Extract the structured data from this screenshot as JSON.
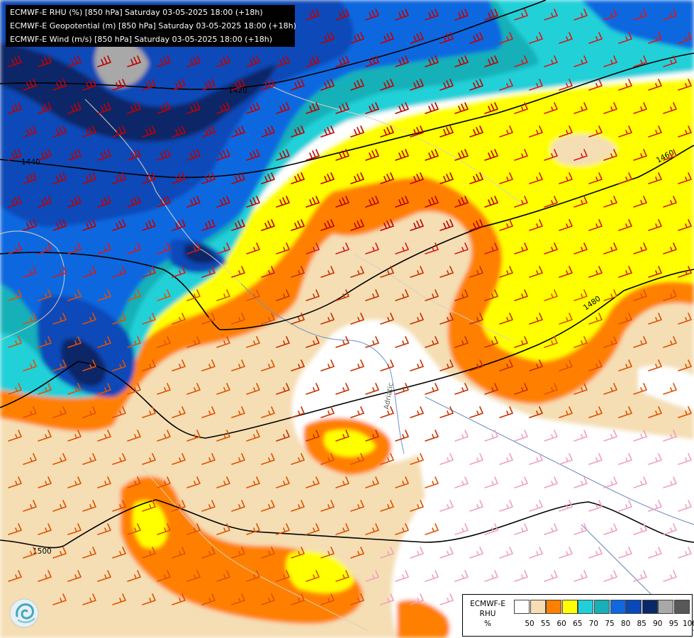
{
  "info_lines": [
    "ECMWF-E RHU (%) [850 hPa] Saturday 03-05-2025 18:00 (+18h)",
    "ECMWF-E Geopotential (m) [850 hPa] Saturday 03-05-2025 18:00 (+18h)",
    "ECMWF-E Wind (m/s) [850 hPa] Saturday 03-05-2025 18:00 (+18h)"
  ],
  "legend": {
    "title_line1": "ECMWF-E",
    "title_line2": "RHU",
    "title_line3": "%",
    "colors": [
      "#ffffff",
      "#f5deb3",
      "#ff8000",
      "#ffff00",
      "#20d0d8",
      "#18b0b8",
      "#1068e0",
      "#0848b8",
      "#082868",
      "#a8a8a8",
      "#585858"
    ],
    "labels": [
      "50",
      "55",
      "60",
      "65",
      "70",
      "75",
      "80",
      "85",
      "90",
      "95",
      "100"
    ]
  },
  "contours": [
    {
      "label": "1420"
    },
    {
      "label": "1440"
    },
    {
      "label": "1460"
    },
    {
      "label": "1480"
    },
    {
      "label": "1500"
    }
  ],
  "place_label": "Adriatic"
}
